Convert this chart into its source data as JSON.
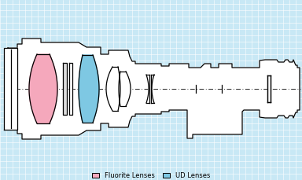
{
  "bg": "#c8e8f5",
  "grid_color": "#ffffff",
  "white": "#ffffff",
  "fluorite_color": "#f5a8bc",
  "ud_color": "#7ec8e3",
  "black": "#000000",
  "legend_fluorite": "Fluorite Lenses",
  "legend_ud": "UD Lenses",
  "figw": 3.84,
  "figh": 2.29,
  "dpi": 100
}
